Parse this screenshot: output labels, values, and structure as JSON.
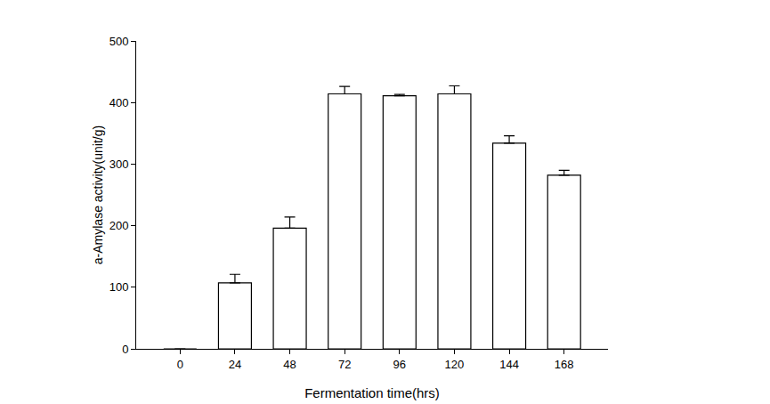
{
  "chart_data": {
    "type": "bar",
    "x_label": "Fermentation time(hrs)",
    "y_label": "a-Amylase activity(unit/g)",
    "categories": [
      "0",
      "24",
      "48",
      "72",
      "96",
      "120",
      "144",
      "168"
    ],
    "values": [
      0,
      107,
      196,
      414,
      411,
      414,
      334,
      282
    ],
    "errors": [
      0,
      14,
      18,
      12,
      2,
      13,
      12,
      8
    ],
    "color": "#ffffff",
    "ylim": [
      0,
      500
    ],
    "yticks": [
      0,
      100,
      200,
      300,
      400,
      500
    ],
    "grid": false
  }
}
